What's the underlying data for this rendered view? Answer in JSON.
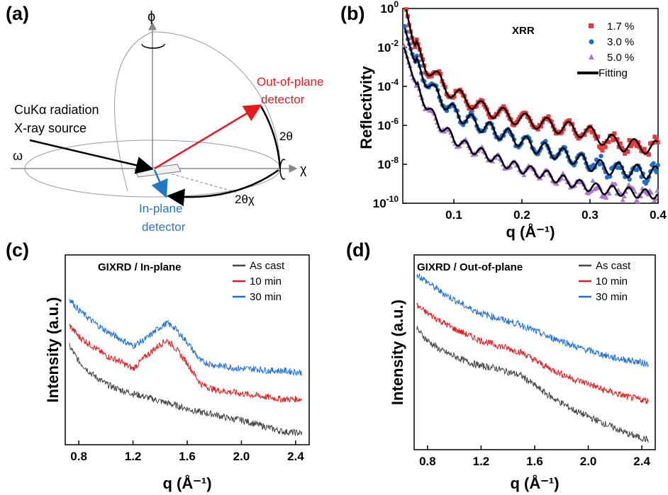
{
  "panels": {
    "a": "(a)",
    "b": "(b)",
    "c": "(c)",
    "d": "(d)"
  },
  "diagram": {
    "phi": "ϕ",
    "chi": "χ",
    "omega": "ω",
    "two_theta": "2θ",
    "two_theta_chi": "2θχ",
    "source_line1": "CuKα radiation",
    "source_line2": "X-ray source",
    "out_of_plane_line1": "Out-of-plane",
    "out_of_plane_line2": "detector",
    "in_plane_line1": "In-plane",
    "in_plane_line2": "detector",
    "colors": {
      "source": "#000000",
      "out_of_plane": "#e8191f",
      "in_plane": "#1f78c8"
    }
  },
  "chart_data": [
    {
      "id": "b",
      "type": "scatter",
      "annotation": "XRR",
      "xlabel": "q (Å⁻¹)",
      "ylabel": "Reflectivity",
      "xlim": [
        0.025,
        0.4
      ],
      "ylim": [
        1e-10,
        1
      ],
      "yscale": "log",
      "xticks": [
        "0.1",
        "0.2",
        "0.3",
        "0.4"
      ],
      "yticks": [
        "10^0",
        "10^-2",
        "10^-4",
        "10^-6",
        "10^-8",
        "10^-10"
      ],
      "legend_position": "top-right",
      "series": [
        {
          "name": "1.7 %",
          "color": "#e8393a",
          "marker": "square",
          "x": [
            0.03,
            0.04,
            0.05,
            0.06,
            0.07,
            0.08,
            0.09,
            0.1,
            0.12,
            0.14,
            0.16,
            0.18,
            0.2,
            0.22,
            0.25,
            0.28,
            0.3,
            0.32,
            0.35,
            0.38,
            0.4
          ],
          "y": [
            0.9,
            0.02,
            0.005,
            0.001,
            0.0004,
            0.0002,
            8e-05,
            4e-05,
            2e-05,
            8e-06,
            5e-06,
            3e-06,
            2e-06,
            1.5e-06,
            9e-07,
            6e-07,
            4e-07,
            2e-07,
            1e-07,
            8e-08,
            7e-08
          ]
        },
        {
          "name": "3.0 %",
          "color": "#1f6fc8",
          "marker": "circle",
          "x": [
            0.028,
            0.04,
            0.05,
            0.06,
            0.07,
            0.08,
            0.09,
            0.1,
            0.12,
            0.14,
            0.16,
            0.18,
            0.2,
            0.22,
            0.25,
            0.28,
            0.3,
            0.32,
            0.35,
            0.38,
            0.4
          ],
          "y": [
            0.1,
            0.003,
            0.0007,
            0.0002,
            6e-05,
            3e-05,
            1e-05,
            5e-06,
            2e-06,
            1e-06,
            5e-07,
            3e-07,
            1.5e-07,
            8e-08,
            4e-08,
            2e-08,
            1e-08,
            7e-09,
            5e-09,
            4e-09,
            3.5e-09
          ]
        },
        {
          "name": "5.0 %",
          "color": "#a878d6",
          "marker": "triangle",
          "x": [
            0.027,
            0.04,
            0.05,
            0.06,
            0.07,
            0.08,
            0.09,
            0.1,
            0.12,
            0.14,
            0.16,
            0.18,
            0.2,
            0.22,
            0.25,
            0.28,
            0.3,
            0.32,
            0.35,
            0.38,
            0.4
          ],
          "y": [
            0.01,
            0.0003,
            5e-05,
            1e-05,
            3e-06,
            1e-06,
            5e-07,
            2e-07,
            8e-08,
            4e-08,
            2e-08,
            1e-08,
            6e-09,
            4e-09,
            2e-09,
            1e-09,
            7e-10,
            5e-10,
            4e-10,
            3e-10,
            3e-10
          ]
        },
        {
          "name": "Fitting",
          "color": "#000000",
          "marker": "line"
        }
      ]
    },
    {
      "id": "c",
      "type": "line",
      "annotation": "GIXRD / In-plane",
      "xlabel": "q (Å⁻¹)",
      "ylabel": "Intensity (a.u.)",
      "xlim": [
        0.7,
        2.5
      ],
      "ylim": [
        0,
        1
      ],
      "xticks": [
        "0.8",
        "1.2",
        "1.6",
        "2.0",
        "2.4"
      ],
      "legend_position": "top-right",
      "series": [
        {
          "name": "As cast",
          "color": "#444444",
          "x": [
            0.73,
            0.8,
            0.9,
            1.0,
            1.1,
            1.2,
            1.3,
            1.4,
            1.5,
            1.6,
            1.7,
            1.8,
            1.9,
            2.0,
            2.1,
            2.2,
            2.3,
            2.45
          ],
          "y": [
            0.52,
            0.44,
            0.37,
            0.32,
            0.29,
            0.27,
            0.25,
            0.23,
            0.21,
            0.19,
            0.17,
            0.16,
            0.14,
            0.13,
            0.11,
            0.09,
            0.07,
            0.06
          ]
        },
        {
          "name": "10 min",
          "color": "#e8191f",
          "x": [
            0.73,
            0.8,
            0.9,
            1.0,
            1.1,
            1.2,
            1.3,
            1.4,
            1.45,
            1.5,
            1.6,
            1.7,
            1.8,
            1.9,
            2.0,
            2.1,
            2.2,
            2.3,
            2.45
          ],
          "y": [
            0.63,
            0.57,
            0.52,
            0.47,
            0.44,
            0.4,
            0.47,
            0.53,
            0.55,
            0.52,
            0.43,
            0.32,
            0.29,
            0.28,
            0.27,
            0.26,
            0.25,
            0.24,
            0.24
          ]
        },
        {
          "name": "30 min",
          "color": "#1f6fd8",
          "x": [
            0.73,
            0.8,
            0.9,
            1.0,
            1.1,
            1.2,
            1.3,
            1.4,
            1.45,
            1.5,
            1.6,
            1.7,
            1.8,
            1.9,
            2.0,
            2.1,
            2.2,
            2.3,
            2.45
          ],
          "y": [
            0.77,
            0.71,
            0.65,
            0.6,
            0.56,
            0.52,
            0.56,
            0.62,
            0.64,
            0.62,
            0.54,
            0.44,
            0.42,
            0.41,
            0.4,
            0.4,
            0.39,
            0.39,
            0.38
          ]
        }
      ]
    },
    {
      "id": "d",
      "type": "line",
      "annotation": "GIXRD / Out-of-plane",
      "xlabel": "q (Å⁻¹)",
      "ylabel": "Intensity (a.u.)",
      "xlim": [
        0.7,
        2.5
      ],
      "ylim": [
        0,
        1
      ],
      "xticks": [
        "0.8",
        "1.2",
        "1.6",
        "2.0",
        "2.4"
      ],
      "legend_position": "top-right",
      "series": [
        {
          "name": "As cast",
          "color": "#444444",
          "x": [
            0.72,
            0.8,
            0.9,
            1.0,
            1.1,
            1.2,
            1.3,
            1.4,
            1.5,
            1.6,
            1.7,
            1.8,
            1.9,
            2.0,
            2.1,
            2.2,
            2.3,
            2.45
          ],
          "y": [
            0.62,
            0.56,
            0.51,
            0.48,
            0.45,
            0.43,
            0.42,
            0.4,
            0.38,
            0.33,
            0.28,
            0.24,
            0.2,
            0.17,
            0.14,
            0.11,
            0.08,
            0.05
          ]
        },
        {
          "name": "10 min",
          "color": "#e8191f",
          "x": [
            0.72,
            0.8,
            0.9,
            1.0,
            1.1,
            1.2,
            1.3,
            1.4,
            1.5,
            1.6,
            1.7,
            1.8,
            1.9,
            2.0,
            2.1,
            2.2,
            2.3,
            2.45
          ],
          "y": [
            0.74,
            0.7,
            0.66,
            0.62,
            0.59,
            0.56,
            0.54,
            0.52,
            0.5,
            0.46,
            0.42,
            0.39,
            0.36,
            0.34,
            0.31,
            0.29,
            0.27,
            0.25
          ]
        },
        {
          "name": "30 min",
          "color": "#1f6fd8",
          "x": [
            0.72,
            0.8,
            0.9,
            1.0,
            1.1,
            1.2,
            1.3,
            1.4,
            1.5,
            1.6,
            1.7,
            1.8,
            1.9,
            2.0,
            2.1,
            2.2,
            2.3,
            2.45
          ],
          "y": [
            0.9,
            0.86,
            0.81,
            0.77,
            0.73,
            0.7,
            0.68,
            0.66,
            0.64,
            0.61,
            0.58,
            0.56,
            0.53,
            0.51,
            0.49,
            0.47,
            0.46,
            0.44
          ]
        }
      ]
    }
  ]
}
